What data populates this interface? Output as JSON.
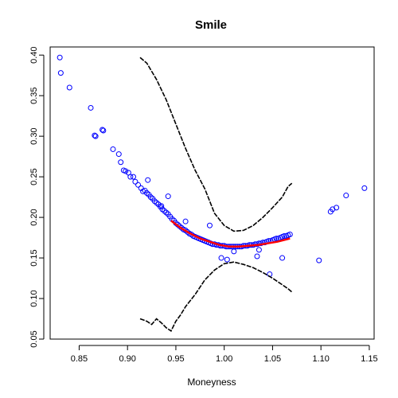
{
  "chart_data": {
    "type": "scatter",
    "title": "Smile",
    "xlabel": "Moneyness",
    "ylabel": "",
    "xlim": [
      0.82,
      1.155
    ],
    "ylim": [
      0.05,
      0.41
    ],
    "xticks": [
      0.85,
      0.9,
      0.95,
      1.0,
      1.05,
      1.1,
      1.15
    ],
    "xtick_labels": [
      "0.85",
      "0.90",
      "0.95",
      "1.00",
      "1.05",
      "1.10",
      "1.15"
    ],
    "yticks": [
      0.05,
      0.1,
      0.15,
      0.2,
      0.25,
      0.3,
      0.35,
      0.4
    ],
    "ytick_labels": [
      "0.05",
      "0.10",
      "0.15",
      "0.20",
      "0.25",
      "0.30",
      "0.35",
      "0.40"
    ],
    "grid": false,
    "legend": "none",
    "colors": {
      "points": "#0000ff",
      "fit": "#ff0000",
      "bands": "#000000"
    },
    "series": [
      {
        "kind": "points",
        "x": [
          0.83,
          0.831,
          0.84,
          0.862,
          0.866,
          0.867,
          0.874,
          0.875,
          0.885,
          0.891,
          0.893,
          0.896,
          0.898,
          0.901,
          0.903,
          0.906,
          0.908,
          0.911,
          0.914,
          0.916,
          0.918,
          0.92,
          0.922,
          0.924,
          0.926,
          0.928,
          0.93,
          0.932,
          0.934,
          0.936,
          0.938,
          0.94,
          0.942,
          0.944,
          0.946,
          0.948,
          0.95,
          0.952,
          0.954,
          0.956,
          0.958,
          0.96,
          0.962,
          0.964,
          0.966,
          0.968,
          0.97,
          0.972,
          0.974,
          0.976,
          0.978,
          0.98,
          0.982,
          0.984,
          0.986,
          0.988,
          0.99,
          0.992,
          0.994,
          0.996,
          0.998,
          1.0,
          1.002,
          1.004,
          1.006,
          1.008,
          1.01,
          1.012,
          1.014,
          1.016,
          1.018,
          1.02,
          1.022,
          1.024,
          1.026,
          1.028,
          1.03,
          1.032,
          1.034,
          1.036,
          1.038,
          1.04,
          1.042,
          1.044,
          1.046,
          1.048,
          1.05,
          1.052,
          1.054,
          1.056,
          1.058,
          1.06,
          1.062,
          1.064,
          1.066,
          1.068,
          0.921,
          0.935,
          0.942,
          0.96,
          0.985,
          0.997,
          1.003,
          1.01,
          1.034,
          1.036,
          1.047,
          1.06,
          1.098,
          1.11,
          1.112,
          1.116,
          1.126,
          1.145
        ],
        "y": [
          0.397,
          0.378,
          0.36,
          0.335,
          0.301,
          0.3,
          0.308,
          0.307,
          0.284,
          0.278,
          0.268,
          0.258,
          0.257,
          0.255,
          0.25,
          0.25,
          0.244,
          0.24,
          0.236,
          0.232,
          0.233,
          0.23,
          0.228,
          0.225,
          0.223,
          0.22,
          0.218,
          0.216,
          0.213,
          0.21,
          0.208,
          0.206,
          0.204,
          0.201,
          0.198,
          0.196,
          0.193,
          0.191,
          0.189,
          0.187,
          0.185,
          0.184,
          0.182,
          0.18,
          0.179,
          0.177,
          0.176,
          0.175,
          0.174,
          0.173,
          0.172,
          0.171,
          0.17,
          0.169,
          0.168,
          0.167,
          0.167,
          0.166,
          0.166,
          0.165,
          0.165,
          0.165,
          0.164,
          0.164,
          0.164,
          0.164,
          0.164,
          0.164,
          0.164,
          0.164,
          0.164,
          0.165,
          0.165,
          0.165,
          0.166,
          0.166,
          0.166,
          0.167,
          0.167,
          0.168,
          0.168,
          0.169,
          0.169,
          0.17,
          0.171,
          0.171,
          0.172,
          0.173,
          0.174,
          0.174,
          0.175,
          0.176,
          0.177,
          0.177,
          0.178,
          0.179,
          0.246,
          0.214,
          0.226,
          0.195,
          0.19,
          0.15,
          0.148,
          0.158,
          0.152,
          0.16,
          0.13,
          0.15,
          0.147,
          0.207,
          0.21,
          0.212,
          0.227,
          0.236
        ]
      },
      {
        "kind": "fit",
        "x": [
          0.945,
          0.955,
          0.965,
          0.975,
          0.985,
          0.995,
          1.005,
          1.015,
          1.025,
          1.035,
          1.045,
          1.055,
          1.065,
          1.068
        ],
        "y": [
          0.196,
          0.187,
          0.18,
          0.174,
          0.17,
          0.166,
          0.164,
          0.164,
          0.165,
          0.166,
          0.168,
          0.17,
          0.173,
          0.174
        ]
      },
      {
        "kind": "upper_band",
        "x": [
          0.913,
          0.92,
          0.93,
          0.94,
          0.95,
          0.96,
          0.97,
          0.98,
          0.99,
          1.0,
          1.01,
          1.02,
          1.03,
          1.04,
          1.05,
          1.06,
          1.066,
          1.07
        ],
        "y": [
          0.397,
          0.39,
          0.37,
          0.345,
          0.315,
          0.285,
          0.258,
          0.235,
          0.205,
          0.19,
          0.183,
          0.184,
          0.19,
          0.2,
          0.212,
          0.225,
          0.238,
          0.242
        ]
      },
      {
        "kind": "lower_band",
        "x": [
          0.913,
          0.92,
          0.925,
          0.93,
          0.935,
          0.94,
          0.945,
          0.95,
          0.955,
          0.96,
          0.97,
          0.98,
          0.99,
          1.0,
          1.01,
          1.02,
          1.03,
          1.04,
          1.05,
          1.06,
          1.066,
          1.07
        ],
        "y": [
          0.075,
          0.072,
          0.068,
          0.075,
          0.07,
          0.064,
          0.06,
          0.072,
          0.08,
          0.09,
          0.105,
          0.123,
          0.135,
          0.143,
          0.145,
          0.142,
          0.138,
          0.132,
          0.125,
          0.117,
          0.112,
          0.108
        ]
      }
    ]
  }
}
